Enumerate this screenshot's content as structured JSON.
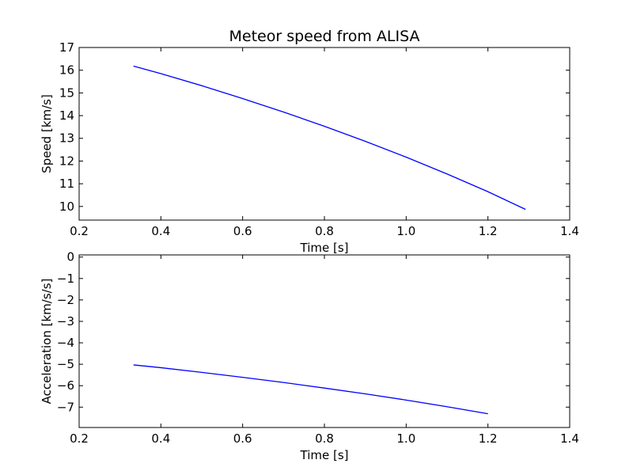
{
  "chart_data": [
    {
      "type": "line",
      "title": "Meteor speed from  ALISA",
      "xlabel": "Time [s]",
      "ylabel": "Speed [km/s]",
      "xlim": [
        0.2,
        1.4
      ],
      "ylim": [
        9.4,
        17
      ],
      "x_ticks": [
        0.2,
        0.4,
        0.6,
        0.8,
        1.0,
        1.2,
        1.4
      ],
      "x_tick_labels": [
        "0.2",
        "0.4",
        "0.6",
        "0.8",
        "1.0",
        "1.2",
        "1.4"
      ],
      "y_ticks": [
        10,
        11,
        12,
        13,
        14,
        15,
        16,
        17
      ],
      "y_tick_labels": [
        "10",
        "11",
        "12",
        "13",
        "14",
        "15",
        "16",
        "17"
      ],
      "grid": false,
      "line_color": "#0000ff",
      "series": [
        {
          "x": [
            0.333,
            0.4,
            0.5,
            0.6,
            0.7,
            0.8,
            0.9,
            1.0,
            1.1,
            1.2,
            1.292
          ],
          "values": [
            16.18,
            15.85,
            15.32,
            14.75,
            14.16,
            13.53,
            12.87,
            12.17,
            11.43,
            10.65,
            9.87
          ]
        }
      ]
    },
    {
      "type": "line",
      "title": "",
      "xlabel": "Time [s]",
      "ylabel": "Acceleration [km/s/s]",
      "xlim": [
        0.2,
        1.4
      ],
      "ylim": [
        -7.95,
        0.1
      ],
      "x_ticks": [
        0.2,
        0.4,
        0.6,
        0.8,
        1.0,
        1.2,
        1.4
      ],
      "x_tick_labels": [
        "0.2",
        "0.4",
        "0.6",
        "0.8",
        "1.0",
        "1.2",
        "1.4"
      ],
      "y_ticks": [
        0,
        -1,
        -2,
        -3,
        -4,
        -5,
        -6,
        -7
      ],
      "y_tick_labels": [
        "0",
        "−1",
        "−2",
        "−3",
        "−4",
        "−5",
        "−6",
        "−7"
      ],
      "grid": false,
      "line_color": "#0000ff",
      "series": [
        {
          "x": [
            0.333,
            0.4,
            0.5,
            0.6,
            0.7,
            0.8,
            0.9,
            1.0,
            1.1,
            1.2
          ],
          "values": [
            -5.03,
            -5.16,
            -5.38,
            -5.61,
            -5.85,
            -6.11,
            -6.38,
            -6.67,
            -6.98,
            -7.31
          ]
        }
      ]
    }
  ]
}
